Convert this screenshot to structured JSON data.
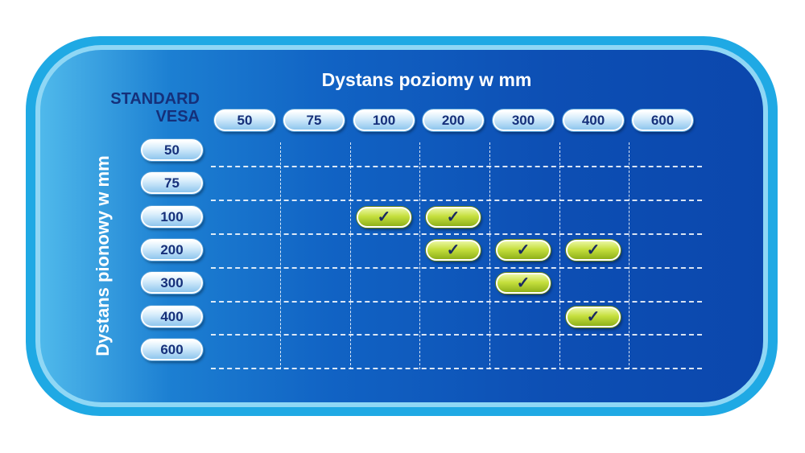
{
  "title_horizontal": "Dystans poziomy w mm",
  "title_vertical": "Dystans pionowy w mm",
  "standard_label": {
    "line1": "STANDARD",
    "line2": "VESA"
  },
  "horizontal_values": [
    "50",
    "75",
    "100",
    "200",
    "300",
    "400",
    "600"
  ],
  "vertical_values": [
    "50",
    "75",
    "100",
    "200",
    "300",
    "400",
    "600"
  ],
  "check_symbol": "✓",
  "compatible": [
    {
      "vertical": "100",
      "horizontal": "100"
    },
    {
      "vertical": "100",
      "horizontal": "200"
    },
    {
      "vertical": "200",
      "horizontal": "200"
    },
    {
      "vertical": "200",
      "horizontal": "300"
    },
    {
      "vertical": "200",
      "horizontal": "400"
    },
    {
      "vertical": "300",
      "horizontal": "300"
    },
    {
      "vertical": "400",
      "horizontal": "400"
    }
  ],
  "colors": {
    "outer_border": "#1fa9e4",
    "panel_dark": "#0b47ad",
    "panel_light": "#4fb9eb",
    "label_text": "#15307a",
    "check_green": "#c5df3d"
  }
}
